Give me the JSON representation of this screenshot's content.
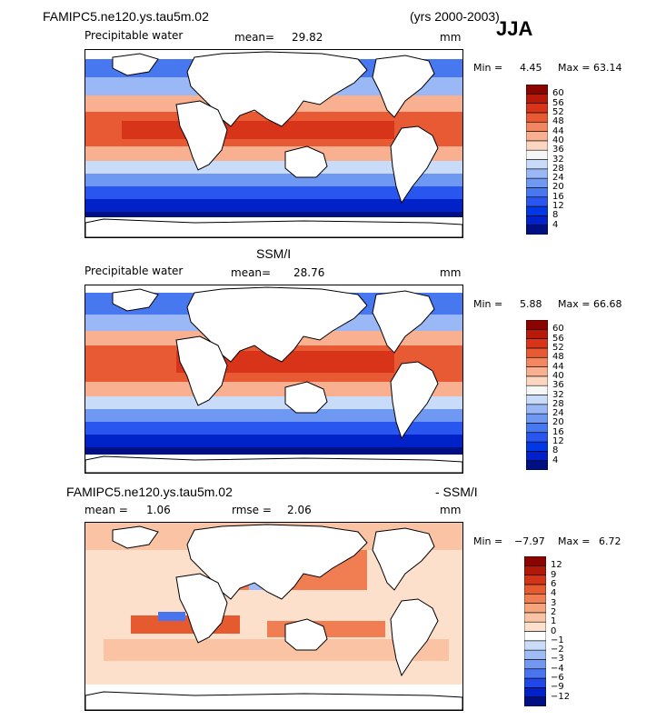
{
  "header": {
    "model_title": "FAMIPC5.ne120.ys.tau5m.02",
    "years": "(yrs 2000-2003)",
    "season": "JJA"
  },
  "panels": [
    {
      "id": "model",
      "title": "",
      "variable": "Precipitable water",
      "stat1_label": "mean=",
      "stat1_value": "29.82",
      "stat2_label": "",
      "stat2_value": "",
      "units": "mm",
      "min_label": "Min =",
      "min_value": "4.45",
      "max_label": "Max =",
      "max_value": "63.14"
    },
    {
      "id": "obs",
      "title": "SSM/I",
      "variable": "Precipitable water",
      "stat1_label": "mean=",
      "stat1_value": "28.76",
      "stat2_label": "",
      "stat2_value": "",
      "units": "mm",
      "min_label": "Min =",
      "min_value": "5.88",
      "max_label": "Max =",
      "max_value": "66.68"
    },
    {
      "id": "diff",
      "title_left": "FAMIPC5.ne120.ys.tau5m.02",
      "title_right": "- SSM/I",
      "variable": "",
      "stat1_label": "mean =",
      "stat1_value": "1.06",
      "stat2_label": "rmse =",
      "stat2_value": "2.06",
      "units": "mm",
      "min_label": "Min =",
      "min_value": "−7.97",
      "max_label": "Max =",
      "max_value": "6.72"
    }
  ],
  "chart_data": [
    {
      "type": "heatmap",
      "name": "model-precipitable-water-map",
      "colorbar_levels": [
        "4",
        "8",
        "12",
        "16",
        "20",
        "24",
        "28",
        "32",
        "36",
        "40",
        "44",
        "48",
        "52",
        "56",
        "60"
      ],
      "colors": [
        "#000f82",
        "#0022c8",
        "#0038e6",
        "#2856ee",
        "#4878f0",
        "#6e98f2",
        "#9ab8f6",
        "#c8dcfa",
        "#f6f6f6",
        "#fcd6c0",
        "#f8b090",
        "#f28660",
        "#e85a34",
        "#d8341a",
        "#b81a0a",
        "#8a0500"
      ]
    },
    {
      "type": "heatmap",
      "name": "ssmi-precipitable-water-map",
      "colorbar_levels": [
        "4",
        "8",
        "12",
        "16",
        "20",
        "24",
        "28",
        "32",
        "36",
        "40",
        "44",
        "48",
        "52",
        "56",
        "60"
      ],
      "colors": [
        "#000f82",
        "#0022c8",
        "#0038e6",
        "#2856ee",
        "#4878f0",
        "#6e98f2",
        "#9ab8f6",
        "#c8dcfa",
        "#f6f6f6",
        "#fcd6c0",
        "#f8b090",
        "#f28660",
        "#e85a34",
        "#d8341a",
        "#b81a0a",
        "#8a0500"
      ]
    },
    {
      "type": "heatmap",
      "name": "difference-map",
      "colorbar_levels": [
        "−12",
        "−9",
        "−6",
        "−4",
        "−3",
        "−2",
        "−1",
        "0",
        "1",
        "2",
        "3",
        "4",
        "6",
        "9",
        "12"
      ],
      "colors": [
        "#000f82",
        "#0022c8",
        "#2048e8",
        "#4a74ee",
        "#7498f2",
        "#a0bcf6",
        "#cadcfa",
        "#ffffff",
        "#fde0cc",
        "#fac4a4",
        "#f6a47c",
        "#f07e52",
        "#e65a30",
        "#d23418",
        "#b01808",
        "#8a0500"
      ]
    }
  ]
}
